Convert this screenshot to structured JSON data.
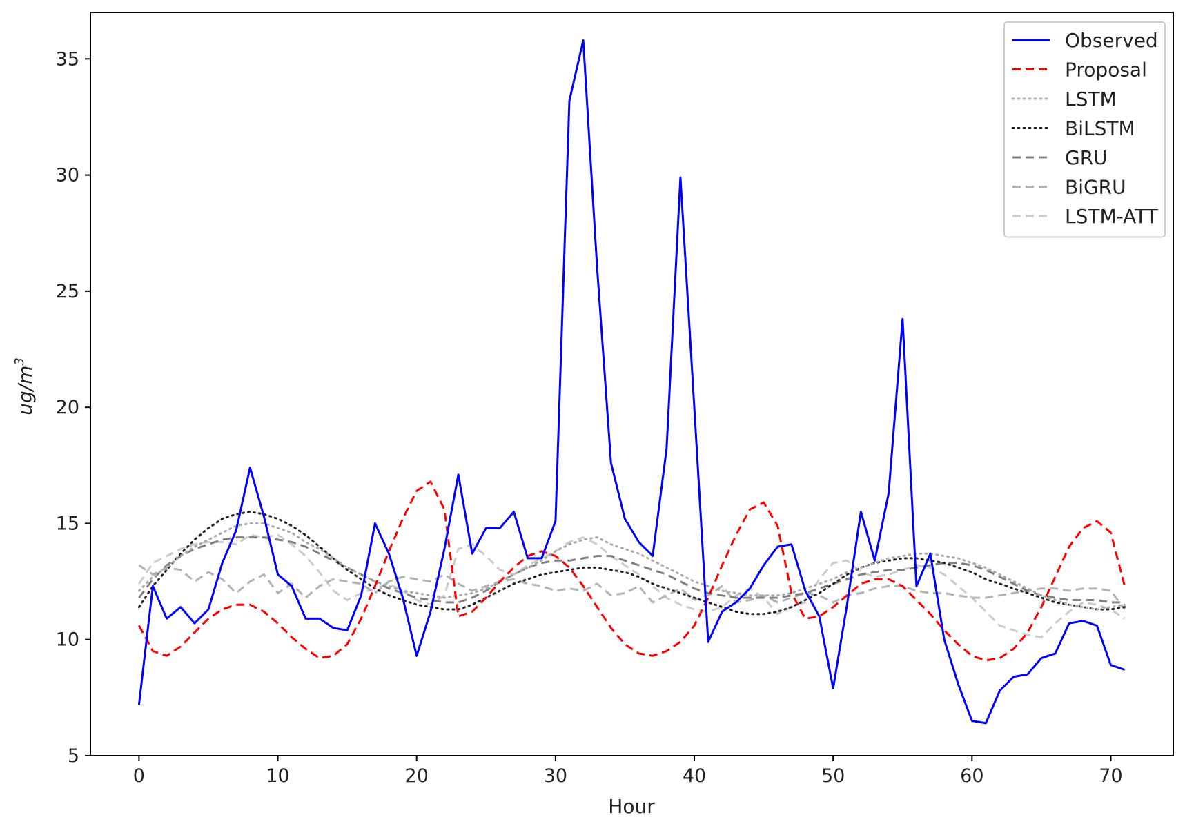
{
  "chart_data": {
    "type": "line",
    "title": "",
    "xlabel": "Hour",
    "ylabel": "ug/m",
    "ylabel_superscript": "3",
    "xlim": [
      -3.5,
      74.5
    ],
    "ylim": [
      5,
      37
    ],
    "xticks": [
      0,
      10,
      20,
      30,
      40,
      50,
      60,
      70
    ],
    "yticks": [
      5,
      10,
      15,
      20,
      25,
      30,
      35
    ],
    "grid": false,
    "legend_position": "top-right",
    "series": [
      {
        "name": "Observed",
        "color": "#0000ff",
        "style": "solid",
        "values": [
          7.2,
          12.3,
          10.9,
          11.4,
          10.7,
          11.3,
          13.3,
          14.7,
          17.4,
          15.3,
          12.8,
          12.3,
          10.9,
          10.9,
          10.5,
          10.4,
          11.9,
          15.0,
          13.7,
          11.8,
          9.3,
          11.2,
          13.9,
          17.1,
          13.7,
          14.8,
          14.8,
          15.5,
          13.5,
          13.5,
          15.1,
          33.2,
          35.8,
          26.0,
          17.6,
          15.2,
          14.2,
          13.6,
          18.2,
          29.9,
          20.0,
          9.9,
          11.2,
          11.6,
          12.2,
          13.2,
          14.0,
          14.1,
          12.1,
          11.0,
          7.9,
          11.5,
          15.5,
          13.4,
          16.3,
          23.8,
          12.3,
          13.7,
          10.0,
          8.1,
          6.5,
          6.4,
          7.8,
          8.4,
          8.5,
          9.2,
          9.4,
          10.7,
          10.8,
          10.6,
          8.9,
          8.7
        ]
      },
      {
        "name": "Proposal",
        "color": "#ff0000",
        "style": "dashed",
        "values": [
          10.6,
          9.5,
          9.3,
          9.7,
          10.3,
          10.9,
          11.3,
          11.5,
          11.5,
          11.2,
          10.7,
          10.1,
          9.6,
          9.2,
          9.3,
          9.8,
          10.9,
          12.3,
          13.8,
          15.2,
          16.4,
          16.8,
          15.6,
          11.0,
          11.2,
          11.8,
          12.5,
          13.1,
          13.6,
          13.8,
          13.6,
          13.1,
          12.3,
          11.4,
          10.5,
          9.8,
          9.4,
          9.3,
          9.5,
          9.9,
          10.6,
          11.8,
          13.2,
          14.5,
          15.6,
          15.9,
          14.9,
          12.0,
          10.9,
          11.0,
          11.4,
          11.9,
          12.4,
          12.6,
          12.6,
          12.3,
          11.7,
          11.1,
          10.4,
          9.8,
          9.3,
          9.1,
          9.2,
          9.6,
          10.3,
          11.4,
          12.7,
          14.0,
          14.8,
          15.1,
          14.6,
          12.3
        ]
      },
      {
        "name": "LSTM",
        "color": "#aaaaaa",
        "style": "dotted",
        "values": [
          12.1,
          12.7,
          13.1,
          13.6,
          14.0,
          14.3,
          14.6,
          14.9,
          15.0,
          15.0,
          14.8,
          14.6,
          14.2,
          13.9,
          13.5,
          13.1,
          12.8,
          12.5,
          12.3,
          12.1,
          12.0,
          11.9,
          11.8,
          11.9,
          12.0,
          12.2,
          12.5,
          12.8,
          13.1,
          13.4,
          13.8,
          14.1,
          14.3,
          14.4,
          14.1,
          13.9,
          13.7,
          13.4,
          13.1,
          12.8,
          12.5,
          12.3,
          12.1,
          12.0,
          11.9,
          11.9,
          11.9,
          12.0,
          12.2,
          12.4,
          12.6,
          12.9,
          13.1,
          13.3,
          13.5,
          13.6,
          13.7,
          13.7,
          13.6,
          13.5,
          13.3,
          13.1,
          12.8,
          12.5,
          12.2,
          11.9,
          11.7,
          11.5,
          11.4,
          11.3,
          11.4,
          11.5
        ]
      },
      {
        "name": "BiLSTM",
        "color": "#222222",
        "style": "dotted",
        "values": [
          11.4,
          12.3,
          13.0,
          13.7,
          14.3,
          14.8,
          15.2,
          15.4,
          15.5,
          15.4,
          15.2,
          14.9,
          14.5,
          14.0,
          13.5,
          13.0,
          12.6,
          12.2,
          11.9,
          11.7,
          11.5,
          11.4,
          11.3,
          11.3,
          11.5,
          11.8,
          12.1,
          12.4,
          12.6,
          12.8,
          12.9,
          13.0,
          13.1,
          13.1,
          13.0,
          12.9,
          12.7,
          12.4,
          12.2,
          12.0,
          11.8,
          11.6,
          11.4,
          11.2,
          11.1,
          11.1,
          11.2,
          11.4,
          11.7,
          12.0,
          12.4,
          12.8,
          13.1,
          13.3,
          13.4,
          13.5,
          13.5,
          13.4,
          13.3,
          13.1,
          12.9,
          12.6,
          12.4,
          12.2,
          12.0,
          11.8,
          11.6,
          11.5,
          11.4,
          11.3,
          11.3,
          11.4
        ]
      },
      {
        "name": "GRU",
        "color": "#808080",
        "style": "dashed",
        "values": [
          11.8,
          12.6,
          13.2,
          13.6,
          13.9,
          14.1,
          14.3,
          14.4,
          14.4,
          14.4,
          14.3,
          14.2,
          14.0,
          13.7,
          13.4,
          13.1,
          12.8,
          12.5,
          12.2,
          12.0,
          11.8,
          11.7,
          11.6,
          11.6,
          11.8,
          12.1,
          12.5,
          12.8,
          13.1,
          13.3,
          13.4,
          13.4,
          13.5,
          13.6,
          13.6,
          13.4,
          13.2,
          13.0,
          12.8,
          12.5,
          12.2,
          12.0,
          11.9,
          11.8,
          11.8,
          11.8,
          11.8,
          11.9,
          12.0,
          12.2,
          12.4,
          12.6,
          12.8,
          12.9,
          13.0,
          13.0,
          13.1,
          13.2,
          13.3,
          13.3,
          13.2,
          13.0,
          12.7,
          12.4,
          12.1,
          11.9,
          11.8,
          11.7,
          11.7,
          11.7,
          11.6,
          11.6
        ]
      },
      {
        "name": "BiGRU",
        "color": "#b3b3b3",
        "style": "dashed",
        "values": [
          13.2,
          12.8,
          13.1,
          13.0,
          12.5,
          12.9,
          12.6,
          12.0,
          12.5,
          12.8,
          12.0,
          12.4,
          11.8,
          12.3,
          12.6,
          12.5,
          12.4,
          12.0,
          12.5,
          12.7,
          12.6,
          12.5,
          12.8,
          12.4,
          12.1,
          12.3,
          12.5,
          12.6,
          12.4,
          12.3,
          12.1,
          12.2,
          12.1,
          12.4,
          11.9,
          12.0,
          12.3,
          11.6,
          11.9,
          12.2,
          11.7,
          11.9,
          12.3,
          11.6,
          11.7,
          11.9,
          11.6,
          11.8,
          12.0,
          11.9,
          11.6,
          11.9,
          12.0,
          12.2,
          12.3,
          12.3,
          12.1,
          12.0,
          12.0,
          11.9,
          11.8,
          11.8,
          11.9,
          12.0,
          12.1,
          12.2,
          12.2,
          12.1,
          12.2,
          12.2,
          12.1,
          11.3
        ]
      },
      {
        "name": "LSTM-ATT",
        "color": "#cccccc",
        "style": "dashed",
        "values": [
          12.4,
          13.3,
          13.6,
          13.9,
          14.1,
          14.2,
          14.2,
          14.1,
          14.5,
          14.4,
          14.5,
          14.1,
          13.6,
          12.9,
          12.1,
          11.7,
          12.0,
          12.2,
          12.4,
          12.1,
          11.7,
          11.5,
          11.9,
          13.9,
          14.1,
          13.6,
          13.0,
          12.8,
          13.2,
          13.5,
          13.8,
          14.2,
          14.4,
          14.1,
          13.6,
          13.2,
          12.8,
          12.3,
          11.8,
          11.5,
          11.3,
          11.2,
          11.4,
          11.9,
          12.2,
          11.8,
          11.1,
          11.4,
          11.6,
          12.6,
          13.3,
          13.4,
          12.9,
          12.7,
          12.8,
          13.0,
          13.2,
          13.1,
          12.8,
          12.3,
          11.8,
          11.2,
          10.6,
          10.4,
          10.2,
          10.1,
          10.7,
          11.2,
          11.6,
          11.5,
          11.3,
          10.9
        ]
      }
    ]
  }
}
